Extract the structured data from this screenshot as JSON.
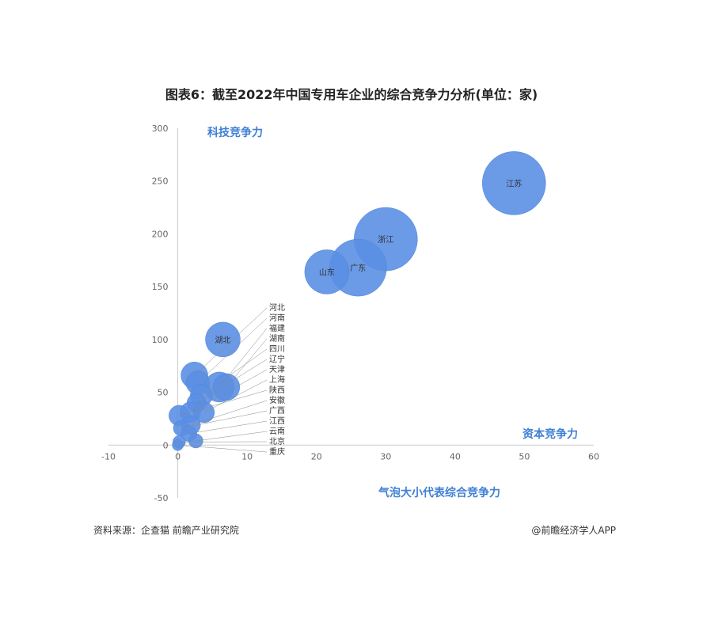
{
  "chart_data": {
    "type": "bubble",
    "title": "图表6：截至2022年中国专用车企业的综合竞争力分析(单位：家)",
    "xlabel": "资本竞争力",
    "ylabel": "科技竞争力",
    "size_label": "气泡大小代表综合竞争力",
    "xlim": [
      -10,
      60
    ],
    "ylim": [
      -50,
      300
    ],
    "xticks": [
      -10,
      0,
      10,
      20,
      30,
      40,
      50,
      60
    ],
    "yticks": [
      -50,
      0,
      50,
      100,
      150,
      200,
      250,
      300
    ],
    "grid": false,
    "color": "#5b8fe3",
    "points": [
      {
        "label": "江苏",
        "x": 48.5,
        "y": 248,
        "size": 40
      },
      {
        "label": "浙江",
        "x": 30,
        "y": 195,
        "size": 40
      },
      {
        "label": "广东",
        "x": 26,
        "y": 168,
        "size": 36
      },
      {
        "label": "山东",
        "x": 21.5,
        "y": 164,
        "size": 28
      },
      {
        "label": "湖北",
        "x": 6.5,
        "y": 100,
        "size": 22
      },
      {
        "label": "河北",
        "x": 2.4,
        "y": 66,
        "size": 17
      },
      {
        "label": "河南",
        "x": 2.9,
        "y": 59,
        "size": 15
      },
      {
        "label": "福建",
        "x": 6.0,
        "y": 55,
        "size": 19
      },
      {
        "label": "湖南",
        "x": 7.0,
        "y": 55,
        "size": 17
      },
      {
        "label": "四川",
        "x": 3.4,
        "y": 47,
        "size": 14
      },
      {
        "label": "辽宁",
        "x": 2.7,
        "y": 40,
        "size": 12
      },
      {
        "label": "天津",
        "x": 1.8,
        "y": 31,
        "size": 13
      },
      {
        "label": "上海",
        "x": 3.8,
        "y": 31,
        "size": 13
      },
      {
        "label": "陕西",
        "x": 0.2,
        "y": 28,
        "size": 13
      },
      {
        "label": "安徽",
        "x": 1.9,
        "y": 19,
        "size": 12
      },
      {
        "label": "广西",
        "x": 0.5,
        "y": 16,
        "size": 10
      },
      {
        "label": "江西",
        "x": 1.6,
        "y": 11,
        "size": 10
      },
      {
        "label": "云南",
        "x": 2.6,
        "y": 4,
        "size": 9
      },
      {
        "label": "北京",
        "x": 0.2,
        "y": 3,
        "size": 8
      },
      {
        "label": "重庆",
        "x": 0.0,
        "y": 0,
        "size": 7
      }
    ]
  },
  "source": "资料来源：企查猫 前瞻产业研究院",
  "credit": "@前瞻经济学人APP"
}
